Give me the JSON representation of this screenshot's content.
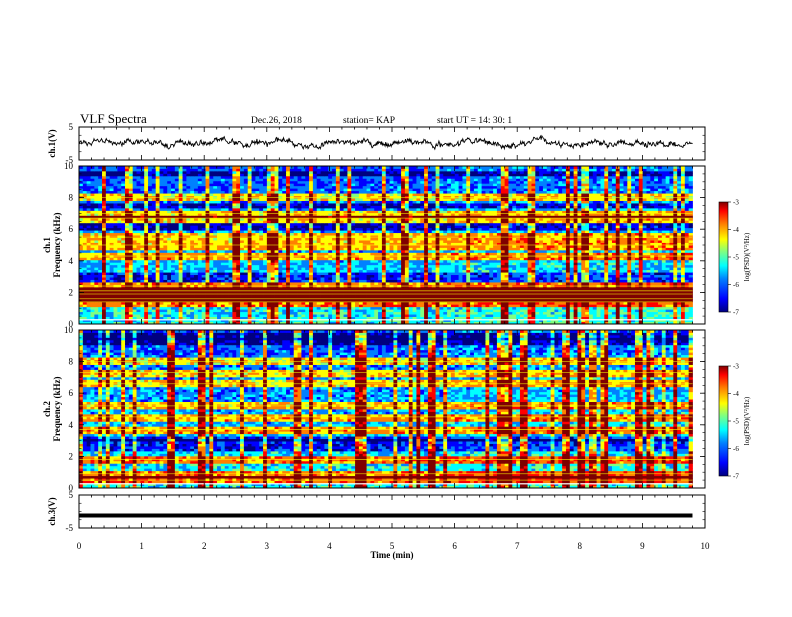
{
  "header": {
    "title": "VLF Spectra",
    "date": "Dec.26, 2018",
    "station": "station= KAP",
    "start": "start  UT =   14: 30: 1"
  },
  "chart_data": [
    {
      "type": "line",
      "name": "ch1-waveform",
      "ylabel": "ch.1(V)",
      "ylim": [
        -5,
        5
      ],
      "yticks": [
        "5",
        "-5"
      ],
      "x_range": [
        0,
        9.8
      ],
      "baseline": 0.2,
      "noise_amplitude": 1.2
    },
    {
      "type": "heatmap",
      "name": "ch1-spectrogram",
      "ylabel": "ch.1 Frequency (kHz)",
      "ylim": [
        0,
        10
      ],
      "yticks": [
        "0",
        "2",
        "4",
        "6",
        "8",
        "10"
      ],
      "x_range": [
        0,
        9.8
      ],
      "colorbar": {
        "label": "log(PSD)(V²/Hz)",
        "range": [
          -7,
          -3
        ],
        "ticks": [
          "-3",
          "-4",
          "-5",
          "-6",
          "-7"
        ]
      },
      "regime_change_min": 5.85,
      "strong_bands_khz": [
        1.4,
        1.6,
        1.9,
        2.1,
        2.4,
        4.3,
        5.0,
        5.5,
        6.7,
        7.0,
        8.0
      ],
      "dark_bands_khz": [
        2.8,
        3.1,
        7.5,
        6.2,
        9.5
      ]
    },
    {
      "type": "heatmap",
      "name": "ch2-spectrogram",
      "ylabel": "ch.2 Frequency (kHz)",
      "ylim": [
        0,
        10
      ],
      "yticks": [
        "0",
        "2",
        "4",
        "6",
        "8",
        "10"
      ],
      "x_range": [
        0,
        9.8
      ],
      "colorbar": {
        "label": "log(PSD)(V²/Hz)",
        "range": [
          -7,
          -3
        ],
        "ticks": [
          "-3",
          "-4",
          "-5",
          "-6",
          "-7"
        ]
      },
      "regime_change_min": 5.85,
      "strong_bands_khz": [
        0.5,
        0.9,
        1.8,
        3.7,
        4.5,
        5.2,
        6.6,
        7.3,
        8.0
      ],
      "dark_bands_khz": [
        2.5,
        2.9,
        3.1,
        9.3,
        9.6
      ]
    },
    {
      "type": "line",
      "name": "ch3-waveform",
      "ylabel": "ch.3(V)",
      "ylim": [
        -5,
        5
      ],
      "yticks": [
        "5",
        "-5"
      ],
      "x_range": [
        0,
        9.8
      ],
      "constant_value": -1.2
    }
  ],
  "time_axis": {
    "label": "Time (min)",
    "range": [
      0,
      10
    ],
    "ticks": [
      "0",
      "1",
      "2",
      "3",
      "4",
      "5",
      "6",
      "7",
      "8",
      "9",
      "10"
    ]
  },
  "colors": {
    "colormap": [
      "#00007f",
      "#0000ff",
      "#0080ff",
      "#00ffff",
      "#80ff80",
      "#ffff00",
      "#ff8000",
      "#ff0000",
      "#7f0000"
    ],
    "line": "#000000"
  }
}
